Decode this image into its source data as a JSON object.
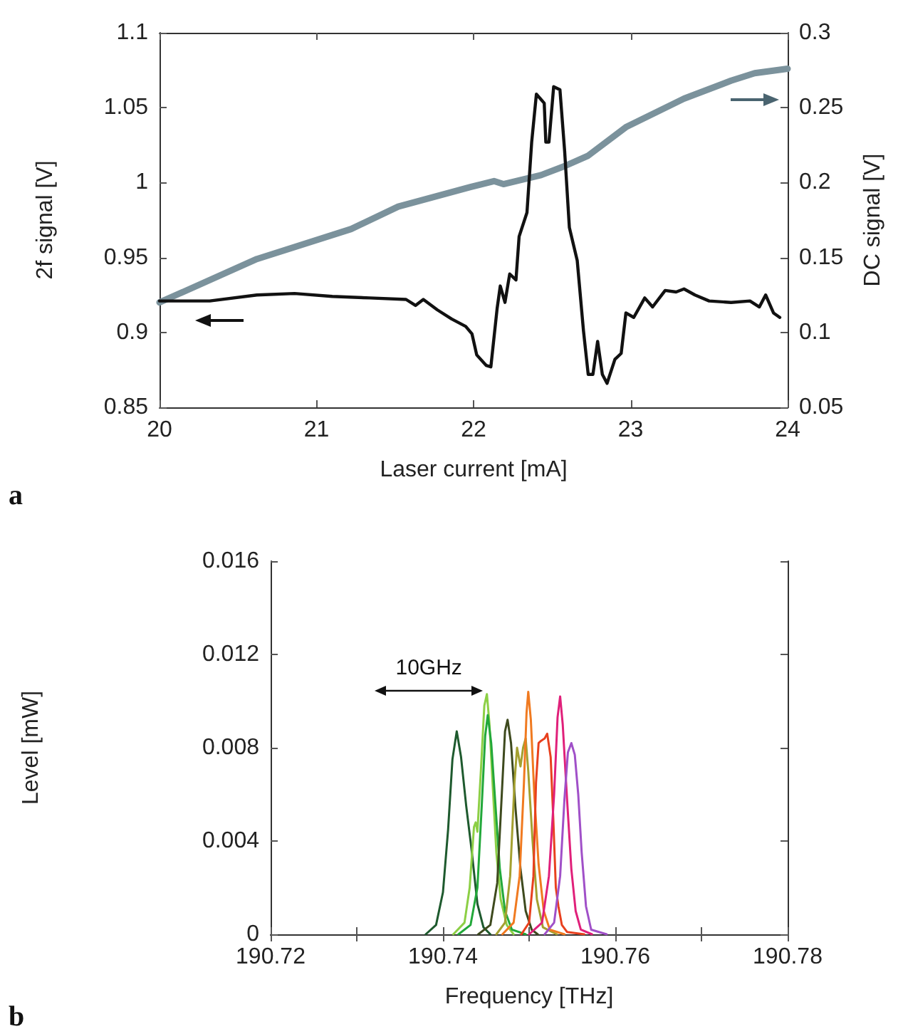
{
  "chart_data": [
    {
      "type": "line",
      "xlabel": "Laser current [mA]",
      "ylabel": "2f signal [V]",
      "y2label": "DC signal [V]",
      "annotations": [
        "a"
      ],
      "xlim": [
        20,
        24
      ],
      "xticks": [
        20,
        21,
        22,
        23,
        24
      ],
      "ylim": [
        0.85,
        1.1
      ],
      "yticks": [
        0.85,
        0.9,
        0.95,
        1,
        1.05,
        1.1
      ],
      "y2lim": [
        0.05,
        0.3
      ],
      "y2ticks": [
        0.05,
        0.1,
        0.15,
        0.2,
        0.25,
        0.3
      ],
      "grid": false,
      "marker": "none",
      "line_style": "solid",
      "series": [
        {
          "color": "#111111",
          "x": [
            20,
            20.32,
            20.62,
            20.86,
            21.1,
            21.34,
            21.57,
            21.63,
            21.68,
            21.77,
            21.86,
            21.95,
            21.99,
            22.02,
            22.08,
            22.11,
            22.15,
            22.17,
            22.2,
            22.23,
            22.27,
            22.29,
            22.34,
            22.37,
            22.4,
            22.45,
            22.46,
            22.48,
            22.51,
            22.55,
            22.58,
            22.61,
            22.66,
            22.7,
            22.73,
            22.76,
            22.79,
            22.82,
            22.85,
            22.9,
            22.94,
            22.97,
            23.02,
            23.09,
            23.14,
            23.22,
            23.29,
            23.34,
            23.41,
            23.5,
            23.64,
            23.76,
            23.82,
            23.86,
            23.91,
            23.95
          ],
          "values": [
            0.921,
            0.921,
            0.925,
            0.926,
            0.924,
            0.923,
            0.922,
            0.918,
            0.922,
            0.915,
            0.909,
            0.904,
            0.899,
            0.885,
            0.878,
            0.877,
            0.916,
            0.931,
            0.92,
            0.939,
            0.935,
            0.964,
            0.98,
            1.027,
            1.059,
            1.053,
            1.027,
            1.027,
            1.064,
            1.062,
            1.021,
            0.97,
            0.948,
            0.901,
            0.872,
            0.872,
            0.894,
            0.872,
            0.866,
            0.882,
            0.886,
            0.913,
            0.91,
            0.923,
            0.917,
            0.928,
            0.927,
            0.929,
            0.925,
            0.921,
            0.92,
            0.921,
            0.917,
            0.925,
            0.913,
            0.91
          ]
        },
        {
          "color": "#7b929c",
          "axis": "y2",
          "x": [
            20,
            20.62,
            21.22,
            21.52,
            21.98,
            22.13,
            22.19,
            22.43,
            22.58,
            22.73,
            22.97,
            23.34,
            23.64,
            23.79,
            24
          ],
          "values": [
            0.12,
            0.149,
            0.169,
            0.184,
            0.197,
            0.201,
            0.199,
            0.205,
            0.211,
            0.218,
            0.237,
            0.256,
            0.268,
            0.273,
            0.276
          ]
        }
      ]
    },
    {
      "type": "line",
      "xlabel": "Frequency [THz]",
      "ylabel": "Level [mW]",
      "annotations": [
        "b",
        "10GHz"
      ],
      "xlim": [
        190.72,
        190.78
      ],
      "xticks": [
        190.72,
        {
          "value": 190.73,
          "label": null
        },
        190.74,
        {
          "value": 190.75,
          "label": null
        },
        190.76,
        {
          "value": 190.77,
          "label": null
        },
        190.78
      ],
      "ylim": [
        0,
        0.016
      ],
      "yticks": [
        0,
        0.004,
        0.008,
        0.012,
        0.016
      ],
      "grid": false,
      "marker": "none",
      "line_style": "solid",
      "series": [
        {
          "color": "#1e5a2e",
          "x": [
            190.738,
            190.7392,
            190.74,
            190.7406,
            190.7411,
            190.7416,
            190.7421,
            190.7427,
            190.7433,
            190.744,
            190.7447,
            190.7455
          ],
          "values": [
            0,
            0.0004,
            0.0018,
            0.0045,
            0.0075,
            0.0087,
            0.0076,
            0.0055,
            0.0037,
            0.0013,
            0.0003,
            0
          ]
        },
        {
          "color": "#8ccf45",
          "x": [
            190.7412,
            190.7425,
            190.7431,
            190.7436,
            190.7438,
            190.744,
            190.7444,
            190.7448,
            190.7451,
            190.7454,
            190.7458,
            190.7462,
            190.7467,
            190.7474,
            190.7482
          ],
          "values": [
            0,
            0.0005,
            0.002,
            0.0046,
            0.0048,
            0.0044,
            0.007,
            0.0098,
            0.0103,
            0.009,
            0.0062,
            0.0035,
            0.0015,
            0.0004,
            0
          ]
        },
        {
          "color": "#22a83a",
          "x": [
            190.7418,
            190.7432,
            190.744,
            190.7445,
            190.7449,
            190.7452,
            190.7456,
            190.7461,
            190.7466,
            190.7472,
            190.748,
            190.7496
          ],
          "values": [
            0,
            0.0004,
            0.002,
            0.0055,
            0.0085,
            0.0094,
            0.0082,
            0.0055,
            0.0028,
            0.001,
            0.0002,
            0
          ]
        },
        {
          "color": "#3e4a1e",
          "x": [
            190.7441,
            190.7455,
            190.7463,
            190.7468,
            190.7472,
            190.7475,
            190.7479,
            190.7484,
            190.749,
            190.7496,
            190.7503,
            190.751
          ],
          "values": [
            0,
            0.0004,
            0.0022,
            0.0058,
            0.0087,
            0.0092,
            0.0082,
            0.0055,
            0.0028,
            0.001,
            0.0002,
            0
          ]
        },
        {
          "color": "#a4a030",
          "x": [
            190.7462,
            190.7472,
            190.7478,
            190.7483,
            190.7486,
            190.749,
            190.7493,
            190.7496,
            190.7499,
            190.7504,
            190.7509,
            190.7516,
            190.7532
          ],
          "values": [
            0,
            0.0005,
            0.0025,
            0.0065,
            0.008,
            0.0072,
            0.008,
            0.0084,
            0.007,
            0.004,
            0.0015,
            0.0003,
            0
          ]
        },
        {
          "color": "#f07a20",
          "x": [
            190.7469,
            190.7482,
            190.7489,
            190.7494,
            190.7497,
            190.7499,
            190.7502,
            190.7506,
            190.7511,
            190.7517,
            190.7524,
            190.7541
          ],
          "values": [
            0,
            0.0005,
            0.0025,
            0.0065,
            0.0095,
            0.0104,
            0.0092,
            0.006,
            0.003,
            0.001,
            0.0002,
            0
          ]
        },
        {
          "color": "#e8401e",
          "x": [
            190.7491,
            190.75,
            190.7505,
            190.7508,
            190.7511,
            190.7514,
            190.7518,
            190.7521,
            190.7525,
            190.7528,
            190.7531,
            190.7534,
            190.7538,
            190.7544,
            190.7564
          ],
          "values": [
            0,
            0.0005,
            0.0025,
            0.0065,
            0.0082,
            0.0083,
            0.0084,
            0.0086,
            0.0076,
            0.005,
            0.002,
            0.0012,
            0.0004,
            0.0001,
            0
          ]
        },
        {
          "color": "#e0207a",
          "x": [
            190.75,
            190.7515,
            190.7523,
            190.7529,
            190.7533,
            190.7536,
            190.7539,
            190.7544,
            190.7549,
            190.7554,
            190.756,
            190.7573
          ],
          "values": [
            0,
            0.0005,
            0.0025,
            0.006,
            0.0093,
            0.0102,
            0.009,
            0.0058,
            0.0028,
            0.001,
            0.0002,
            0
          ]
        },
        {
          "color": "#a050c8",
          "x": [
            190.7518,
            190.7529,
            190.7536,
            190.7541,
            190.7545,
            190.7549,
            190.7553,
            190.7557,
            190.7561,
            190.7566,
            190.7572,
            190.759
          ],
          "values": [
            0,
            0.0005,
            0.0025,
            0.0058,
            0.0078,
            0.0082,
            0.0077,
            0.006,
            0.0035,
            0.0012,
            0.0002,
            0
          ]
        }
      ]
    }
  ]
}
